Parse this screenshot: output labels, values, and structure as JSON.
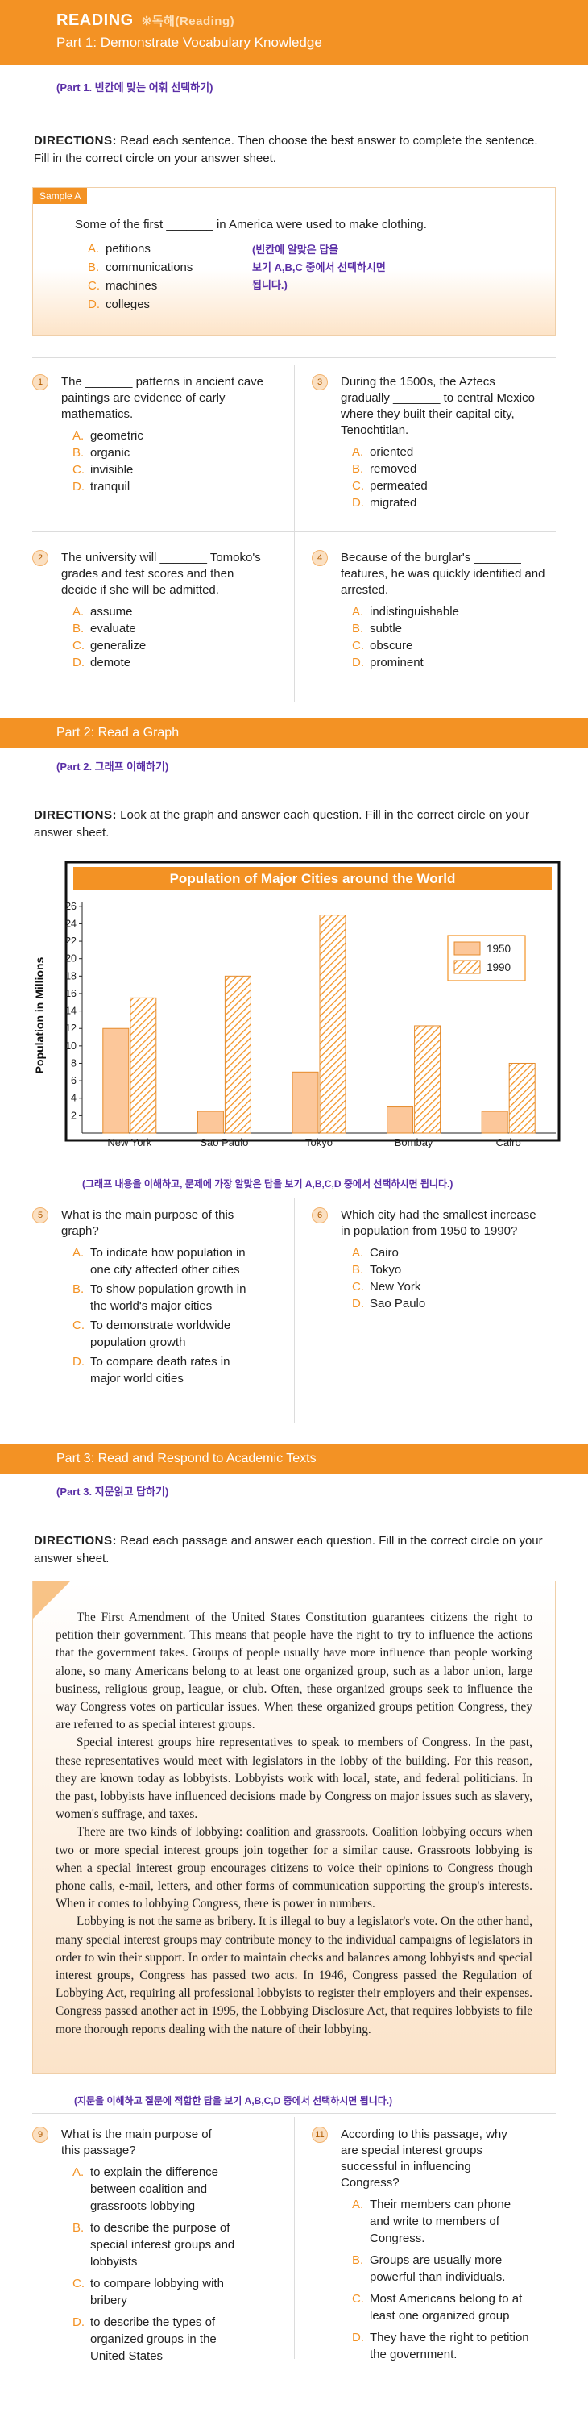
{
  "header": {
    "title": "READING",
    "title_kor": "※독해(Reading)",
    "part1": "Part 1: Demonstrate Vocabulary Knowledge"
  },
  "part1": {
    "kor_note": "(Part 1. 빈칸에 맞는 어휘 선택하기)",
    "dir_label": "DIRECTIONS:",
    "dir_text": " Read each sentence.  Then choose the best answer to complete the sentence.  Fill in the correct circle on your answer sheet.",
    "sample": {
      "tag": "Sample A",
      "stem": "Some of the first _______ in America were used to make clothing.",
      "choices": [
        {
          "letter": "A.",
          "text": "petitions"
        },
        {
          "letter": "B.",
          "text": "communications"
        },
        {
          "letter": "C.",
          "text": "machines"
        },
        {
          "letter": "D.",
          "text": "colleges"
        }
      ],
      "note_lines": [
        "(빈칸에 알맞은 답을",
        "보기 A,B,C 중에서 선택하시면",
        "됩니다.)"
      ]
    },
    "questions": [
      {
        "num": "1",
        "stem": "The _______ patterns in ancient cave paintings are evidence of early mathematics.",
        "choices": [
          {
            "letter": "A.",
            "text": "geometric"
          },
          {
            "letter": "B.",
            "text": "organic"
          },
          {
            "letter": "C.",
            "text": "invisible"
          },
          {
            "letter": "D.",
            "text": "tranquil"
          }
        ]
      },
      {
        "num": "3",
        "stem": "During the 1500s, the Aztecs gradually _______ to central Mexico where they built their capital city, Tenochtitlan.",
        "choices": [
          {
            "letter": "A.",
            "text": "oriented"
          },
          {
            "letter": "B.",
            "text": "removed"
          },
          {
            "letter": "C.",
            "text": "permeated"
          },
          {
            "letter": "D.",
            "text": "migrated"
          }
        ]
      },
      {
        "num": "2",
        "stem": "The university will _______ Tomoko's grades and test scores and then decide if she will be admitted.",
        "choices": [
          {
            "letter": "A.",
            "text": "assume"
          },
          {
            "letter": "B.",
            "text": "evaluate"
          },
          {
            "letter": "C.",
            "text": "generalize"
          },
          {
            "letter": "D.",
            "text": "demote"
          }
        ]
      },
      {
        "num": "4",
        "stem": "Because of the burglar's _______ features, he was quickly identified and arrested.",
        "choices": [
          {
            "letter": "A.",
            "text": "indistinguishable"
          },
          {
            "letter": "B.",
            "text": "subtle"
          },
          {
            "letter": "C.",
            "text": "obscure"
          },
          {
            "letter": "D.",
            "text": "prominent"
          }
        ]
      }
    ]
  },
  "part2": {
    "band": "Part 2: Read a Graph",
    "kor_note": "(Part 2. 그래프 이해하기)",
    "dir_label": "DIRECTIONS:",
    "dir_text": " Look at the graph and answer each question.  Fill in the correct circle on your answer sheet.",
    "chart_note": "(그래프 내용을 이해하고, 문제에 가장 알맞은 답을 보기 A,B,C,D 중에서 선택하시면 됩니다.)",
    "questions": [
      {
        "num": "5",
        "stem": "What is the main purpose of this graph?",
        "choices": [
          {
            "letter": "A.",
            "text": "To indicate how population in one city affected other cities"
          },
          {
            "letter": "B.",
            "text": "To show population growth in the world's major cities"
          },
          {
            "letter": "C.",
            "text": "To demonstrate worldwide population growth"
          },
          {
            "letter": "D.",
            "text": "To compare death rates in major world cities"
          }
        ]
      },
      {
        "num": "6",
        "stem": "Which city had the smallest increase in population from 1950 to 1990?",
        "choices": [
          {
            "letter": "A.",
            "text": "Cairo"
          },
          {
            "letter": "B.",
            "text": "Tokyo"
          },
          {
            "letter": "C.",
            "text": "New York"
          },
          {
            "letter": "D.",
            "text": "Sao Paulo"
          }
        ]
      }
    ]
  },
  "chart_data": {
    "type": "bar",
    "title": "Population of Major Cities around the World",
    "ylabel": "Population in Millions",
    "xlabel": "",
    "categories": [
      "New York",
      "Sao Paulo",
      "Tokyo",
      "Bombay",
      "Cairo"
    ],
    "series": [
      {
        "name": "1950",
        "values": [
          12,
          2.5,
          7,
          3,
          2.5
        ],
        "color": "#fcc79a"
      },
      {
        "name": "1990",
        "values": [
          15.5,
          18,
          25,
          12.3,
          8
        ],
        "color": "#f39224"
      }
    ],
    "yticks": [
      2,
      4,
      6,
      8,
      10,
      12,
      14,
      16,
      18,
      20,
      22,
      24,
      26
    ],
    "ylim": [
      0,
      27
    ],
    "legend": "right",
    "grid": false
  },
  "part3": {
    "band": "Part 3: Read and Respond to Academic Texts",
    "kor_note": "(Part 3. 지문읽고 답하기)",
    "dir_label": "DIRECTIONS:",
    "dir_text": " Read each passage and answer each question.  Fill in the correct circle on your answer sheet.",
    "passage": [
      "The First Amendment of the United States Constitution guarantees citizens the right to petition their government.  This means that people have the right to try to influence the actions that the government takes.  Groups of people usually have more influence than people working alone, so many Americans belong to at least one organized group, such as a labor union, large business, religious group, league, or club.  Often, these organized groups seek to influence the way Congress votes on particular issues.  When these organized groups petition Congress, they are referred to as special interest groups.",
      "Special interest groups hire representatives to speak to members of Congress.  In the past, these representatives would meet with legislators in the lobby of the building.  For this reason, they are known today as lobbyists.  Lobbyists work with local, state, and federal politicians.  In the past, lobbyists have influenced decisions made by Congress on major issues such as slavery, women's suffrage, and taxes.",
      "There are two kinds of lobbying: coalition and grassroots.  Coalition lobbying occurs when two or more special interest groups join together for a similar cause.  Grassroots lobbying is when a special interest group encourages citizens to voice their opinions to Congress though phone calls, e-mail, letters, and other forms of communication supporting the group's interests.  When it comes to lobbying Congress, there is power in numbers.",
      "Lobbying is not the same as bribery.  It is illegal to buy a legislator's vote.  On the other hand, many special interest groups may contribute money to the individual campaigns of legislators in order to win their support.  In order to maintain checks and balances among lobbyists and special interest groups, Congress has passed two acts.  In 1946, Congress passed the Regulation of Lobbying Act, requiring all professional lobbyists to register their employers and their expenses.  Congress passed another act in 1995, the Lobbying Disclosure Act, that requires lobbyists to file more thorough reports dealing with the nature of their lobbying."
    ],
    "passage_note": "(지문을 이해하고 질문에 적합한 답을 보기 A,B,C,D 중에서 선택하시면 됩니다.)",
    "questions": [
      {
        "num": "9",
        "stem": "What is the main purpose of this passage?",
        "choices": [
          {
            "letter": "A.",
            "text": "to explain the difference between coalition and grassroots lobbying"
          },
          {
            "letter": "B.",
            "text": "to describe the purpose of special interest groups and lobbyists"
          },
          {
            "letter": "C.",
            "text": "to compare lobbying with bribery"
          },
          {
            "letter": "D.",
            "text": "to describe the types of organized groups in the United States"
          }
        ]
      },
      {
        "num": "11",
        "stem": "According to this passage, why are special interest groups successful in influencing Congress?",
        "choices": [
          {
            "letter": "A.",
            "text": "Their members can phone and write to members of Congress."
          },
          {
            "letter": "B.",
            "text": "Groups are usually more powerful than individuals."
          },
          {
            "letter": "C.",
            "text": "Most Americans belong to at least one organized group"
          },
          {
            "letter": "D.",
            "text": "They have the right to petition the government."
          }
        ]
      }
    ]
  }
}
